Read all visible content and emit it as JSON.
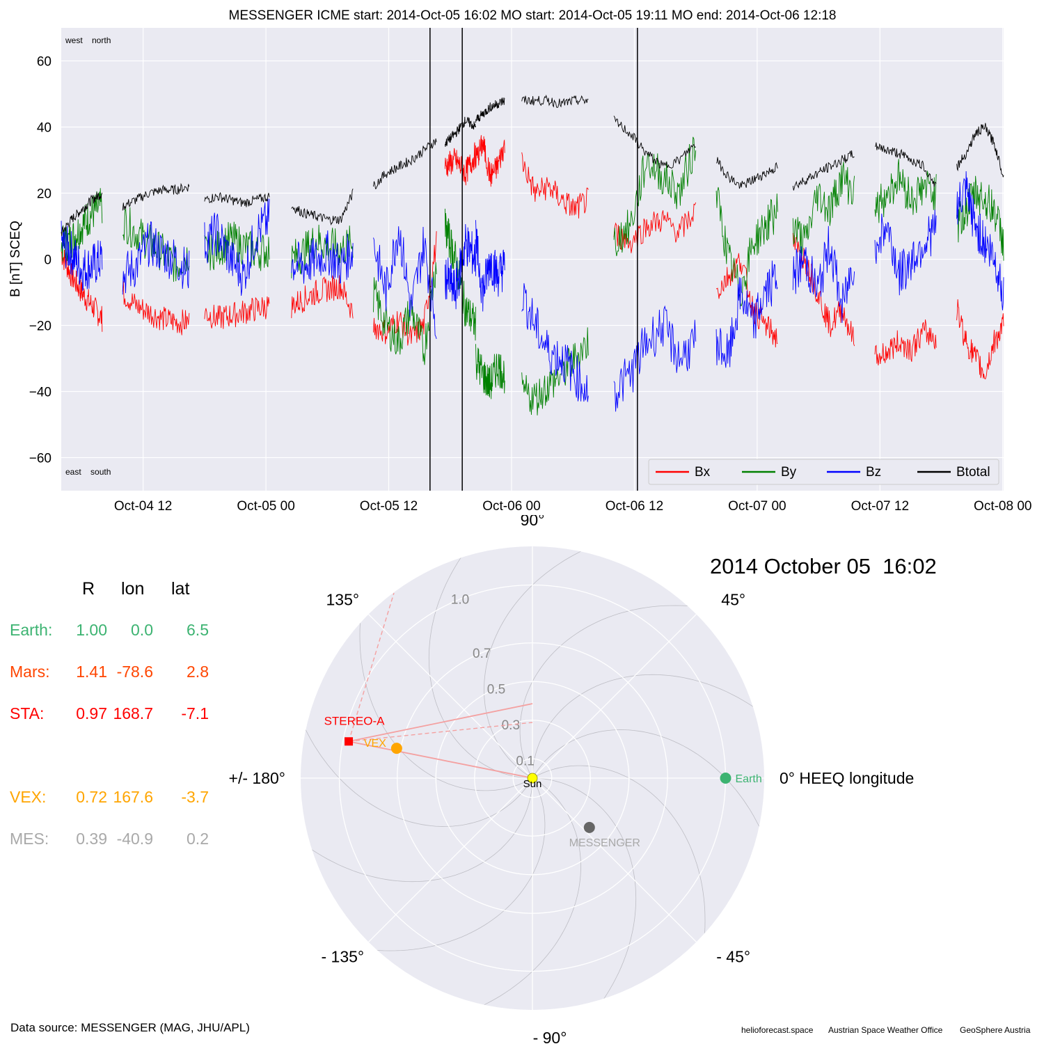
{
  "timeseries": {
    "title": "MESSENGER    ICME start: 2014-Oct-05 16:02   MO start: 2014-Oct-05 19:11   MO end: 2014-Oct-06 12:18",
    "ylabel": "B [nT] SCEQ",
    "corner_labels": {
      "top_left": "west    north",
      "bottom_left": "east    south"
    },
    "legend": [
      "Bx",
      "By",
      "Bz",
      "Btotal"
    ],
    "colors": {
      "Bx": "#ff0000",
      "By": "#008000",
      "Bz": "#0000ff",
      "Btotal": "#000000"
    }
  },
  "chart_data": [
    {
      "type": "line",
      "title": "MESSENGER    ICME start: 2014-Oct-05 16:02   MO start: 2014-Oct-05 19:11   MO end: 2014-Oct-06 12:18",
      "xlabel": "",
      "ylabel": "B [nT] SCEQ",
      "xlim": [
        "2014-10-04 04:00",
        "2014-10-08 00:05"
      ],
      "ylim": [
        -70,
        70
      ],
      "yticks": [
        -60,
        -40,
        -20,
        0,
        20,
        40,
        60
      ],
      "ytick_labels": [
        "−60",
        "−40",
        "−20",
        "0",
        "20",
        "40",
        "60"
      ],
      "xticks": [
        "2014-10-04 12:00",
        "2014-10-05 00:00",
        "2014-10-05 12:00",
        "2014-10-06 00:00",
        "2014-10-06 12:00",
        "2014-10-07 00:00",
        "2014-10-07 12:00",
        "2014-10-08 00:00"
      ],
      "xtick_labels": [
        "Oct-04 12",
        "Oct-05 00",
        "Oct-05 12",
        "Oct-06 00",
        "Oct-06 12",
        "Oct-07 00",
        "Oct-07 12",
        "Oct-08 00"
      ],
      "vlines": [
        "2014-10-05 16:02",
        "2014-10-05 19:11",
        "2014-10-06 12:18"
      ],
      "grid": true,
      "legend_position": "lower-right",
      "segments": [
        {
          "start": "2014-10-04 04:00",
          "end": "2014-10-04 08:00",
          "Bx": [
            2,
            -5,
            -10,
            -14,
            -18
          ],
          "By": [
            4,
            6,
            10,
            14,
            16
          ],
          "Bz": [
            5,
            2,
            -3,
            -2,
            0
          ],
          "Btotal": [
            8,
            12,
            15,
            18,
            20
          ]
        },
        {
          "start": "2014-10-04 10:00",
          "end": "2014-10-04 16:30",
          "Bx": [
            -10,
            -14,
            -16,
            -18,
            -19,
            -19
          ],
          "By": [
            12,
            8,
            5,
            2,
            -2,
            2
          ],
          "Bz": [
            -5,
            -2,
            5,
            2,
            0,
            -4
          ],
          "Btotal": [
            16,
            18,
            20,
            21,
            21,
            22
          ]
        },
        {
          "start": "2014-10-04 18:00",
          "end": "2014-10-05 00:20",
          "Bx": [
            -16,
            -18,
            -17,
            -16,
            -15,
            -14
          ],
          "By": [
            2,
            3,
            6,
            4,
            2,
            3
          ],
          "Bz": [
            5,
            8,
            0,
            -5,
            8,
            12
          ],
          "Btotal": [
            18,
            19,
            18,
            17,
            18,
            19
          ]
        },
        {
          "start": "2014-10-05 02:30",
          "end": "2014-10-05 08:30",
          "Bx": [
            -14,
            -12,
            -10,
            -9,
            -8,
            -16
          ],
          "By": [
            0,
            2,
            6,
            4,
            3,
            5
          ],
          "Bz": [
            -1,
            -2,
            0,
            2,
            -2,
            3
          ],
          "Btotal": [
            16,
            14,
            13,
            12,
            12,
            20
          ]
        },
        {
          "start": "2014-10-05 10:30",
          "end": "2014-10-05 16:40",
          "Bx": [
            -20,
            -22,
            -18,
            -24,
            -20,
            5
          ],
          "By": [
            -10,
            -20,
            -25,
            -15,
            -28,
            0
          ],
          "Bz": [
            5,
            -10,
            10,
            -15,
            5,
            -20
          ],
          "Btotal": [
            22,
            26,
            28,
            30,
            33,
            36
          ]
        },
        {
          "start": "2014-10-05 17:30",
          "end": "2014-10-05 20:30",
          "Bx": [
            28,
            30,
            26,
            32
          ],
          "By": [
            10,
            0,
            -15,
            -20
          ],
          "Bz": [
            -5,
            -10,
            5,
            0
          ],
          "Btotal": [
            35,
            38,
            42,
            40
          ]
        },
        {
          "start": "2014-10-05 20:30",
          "end": "2014-10-05 23:20",
          "Bx": [
            30,
            35,
            25,
            28,
            35
          ],
          "By": [
            -30,
            -35,
            -38,
            -32,
            -35
          ],
          "Bz": [
            5,
            -10,
            0,
            -5,
            -2
          ],
          "Btotal": [
            42,
            44,
            46,
            47,
            48
          ]
        },
        {
          "start": "2014-10-06 01:00",
          "end": "2014-10-06 07:30",
          "Bx": [
            30,
            20,
            22,
            18,
            15,
            18
          ],
          "By": [
            -40,
            -42,
            -38,
            -35,
            -30,
            -25
          ],
          "Bz": [
            -10,
            -20,
            -28,
            -30,
            -35,
            -40
          ],
          "Btotal": [
            48,
            48,
            48,
            47,
            48,
            48
          ]
        },
        {
          "start": "2014-10-06 10:00",
          "end": "2014-10-06 18:00",
          "Bx": [
            8,
            5,
            10,
            12,
            8,
            15
          ],
          "By": [
            5,
            10,
            30,
            25,
            20,
            35
          ],
          "Bz": [
            -40,
            -35,
            -25,
            -20,
            -30,
            -25
          ],
          "Btotal": [
            42,
            38,
            32,
            28,
            30,
            35
          ]
        },
        {
          "start": "2014-10-06 20:00",
          "end": "2014-10-07 02:00",
          "Bx": [
            -10,
            -5,
            0,
            -15,
            -20,
            -24
          ],
          "By": [
            20,
            0,
            -10,
            5,
            10,
            15
          ],
          "Bz": [
            -25,
            -30,
            -10,
            -20,
            -10,
            -5
          ],
          "Btotal": [
            30,
            25,
            22,
            24,
            26,
            28
          ]
        },
        {
          "start": "2014-10-07 03:30",
          "end": "2014-10-07 09:30",
          "Bx": [
            5,
            0,
            -10,
            -20,
            -15,
            -25
          ],
          "By": [
            10,
            5,
            20,
            15,
            25,
            20
          ],
          "Bz": [
            -5,
            0,
            -10,
            5,
            -15,
            0
          ],
          "Btotal": [
            22,
            24,
            26,
            28,
            30,
            32
          ]
        },
        {
          "start": "2014-10-07 11:30",
          "end": "2014-10-07 17:30",
          "Bx": [
            -30,
            -28,
            -25,
            -27,
            -22,
            -24
          ],
          "By": [
            15,
            20,
            25,
            18,
            22,
            20
          ],
          "Bz": [
            5,
            10,
            -5,
            0,
            5,
            10
          ],
          "Btotal": [
            34,
            33,
            32,
            30,
            28,
            22
          ]
        },
        {
          "start": "2014-10-07 19:30",
          "end": "2014-10-08 00:05",
          "Bx": [
            -15,
            -25,
            -30,
            -35,
            -25,
            -20
          ],
          "By": [
            10,
            15,
            20,
            18,
            15,
            5
          ],
          "Bz": [
            15,
            20,
            10,
            5,
            0,
            -10
          ],
          "Btotal": [
            28,
            32,
            38,
            40,
            35,
            25
          ]
        }
      ]
    },
    {
      "type": "scatter",
      "projection": "polar",
      "title": "2014 October 05  16:02",
      "rlim": [
        0,
        1.2
      ],
      "r_ticks": [
        0.1,
        0.3,
        0.5,
        0.7,
        1.0
      ],
      "r_tick_labels": [
        "0.1",
        "0.3",
        "0.5",
        "0.7",
        "1.0"
      ],
      "angle_ticks": [
        90,
        45,
        0,
        -45,
        -90,
        -135,
        180,
        135
      ],
      "angle_tick_labels": [
        "90°",
        "45°",
        "0° HEEQ longitude",
        "- 45°",
        "- 90°",
        "- 135°",
        "+/- 180°",
        "135°"
      ],
      "points": [
        {
          "label": "Sun",
          "r": 0.0,
          "lon": 0.0,
          "color": "#ffff00",
          "marker": "circle"
        },
        {
          "label": "Earth",
          "r": 1.0,
          "lon": 0.0,
          "color": "#3cb371",
          "marker": "circle"
        },
        {
          "label": "MESSENGER",
          "r": 0.39,
          "lon": -40.9,
          "color": "#666666",
          "marker": "circle"
        },
        {
          "label": "VEX",
          "r": 0.72,
          "lon": 167.6,
          "color": "#ffa500",
          "marker": "circle"
        },
        {
          "label": "STEREO-A",
          "r": 0.97,
          "lon": 168.7,
          "color": "#ff0000",
          "marker": "square"
        }
      ],
      "spiral_lines": 12,
      "cme_lines": true
    }
  ],
  "positions": {
    "headers": [
      "R",
      "lon",
      "lat"
    ],
    "rows": [
      {
        "name": "Earth:",
        "R": "1.00",
        "lon": "0.0",
        "lat": "6.5",
        "color": "#3cb371"
      },
      {
        "name": "Mars:",
        "R": "1.41",
        "lon": "-78.6",
        "lat": "2.8",
        "color": "#ff4500"
      },
      {
        "name": "STA:",
        "R": "0.97",
        "lon": "168.7",
        "lat": "-7.1",
        "color": "#ff0000"
      },
      {
        "name": "VEX:",
        "R": "0.72",
        "lon": "167.6",
        "lat": "-3.7",
        "color": "#ffa500"
      },
      {
        "name": "MES:",
        "R": "0.39",
        "lon": "-40.9",
        "lat": "0.2",
        "color": "#a9a9a9"
      }
    ]
  },
  "footer": {
    "data_source": "Data source: MESSENGER (MAG, JHU/APL)",
    "credits": [
      "helioforecast.space",
      "Austrian Space Weather Office",
      "GeoSphere Austria"
    ]
  }
}
